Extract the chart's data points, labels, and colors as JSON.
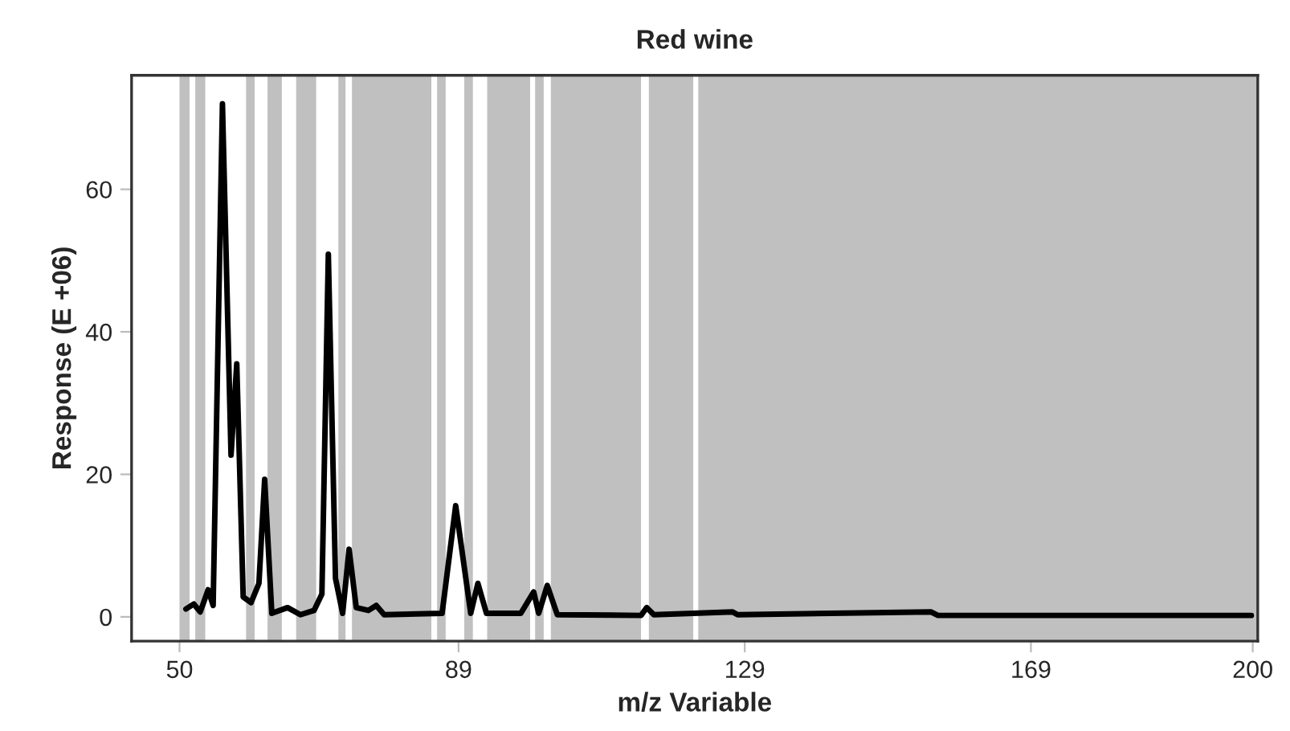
{
  "chart_data": {
    "type": "line",
    "title": "Red wine",
    "xlabel": "m/z Variable",
    "ylabel": "Response (E +06)",
    "x": [
      50.9,
      52.0,
      52.9,
      54.0,
      54.7,
      56.0,
      57.2,
      58.0,
      58.9,
      60.0,
      61.1,
      61.9,
      62.9,
      65.1,
      66.9,
      68.8,
      69.9,
      70.8,
      71.8,
      72.8,
      73.7,
      74.7,
      76.4,
      77.5,
      78.6,
      86.7,
      88.6,
      90.7,
      91.7,
      92.9,
      97.7,
      99.5,
      100.2,
      101.4,
      102.8,
      114.5,
      115.3,
      116.3,
      127.3,
      128.0,
      155.0,
      156.0,
      199.8
    ],
    "series": [
      {
        "color": "#000000",
        "values": [
          1.1,
          1.8,
          0.7,
          3.8,
          1.6,
          72,
          22.7,
          35.5,
          2.8,
          2.0,
          4.7,
          19.3,
          0.5,
          1.3,
          0.3,
          0.9,
          3.2,
          50.9,
          5.4,
          0.5,
          9.5,
          1.3,
          0.9,
          1.6,
          0.3,
          0.5,
          15.6,
          0.5,
          4.7,
          0.5,
          0.5,
          3.5,
          0.5,
          4.4,
          0.3,
          0.2,
          1.3,
          0.3,
          0.7,
          0.3,
          0.7,
          0.2,
          0.2
        ]
      }
    ],
    "xlim": [
      43.3,
      200.7
    ],
    "xticks": [
      50,
      89,
      129,
      169,
      200
    ],
    "ylim": [
      -3.4,
      76
    ],
    "yticks": [
      0,
      20,
      40,
      60
    ],
    "grid": false,
    "line_style": "solid",
    "marker": "none",
    "bands": [
      {
        "axis": "x",
        "from": 50.0,
        "to": 51.4,
        "color": "#c0c0c0"
      },
      {
        "axis": "x",
        "from": 52.2,
        "to": 53.6,
        "color": "#c0c0c0"
      },
      {
        "axis": "x",
        "from": 59.3,
        "to": 60.5,
        "color": "#c0c0c0"
      },
      {
        "axis": "x",
        "from": 62.3,
        "to": 64.3,
        "color": "#c0c0c0"
      },
      {
        "axis": "x",
        "from": 66.3,
        "to": 69.1,
        "color": "#c0c0c0"
      },
      {
        "axis": "x",
        "from": 72.2,
        "to": 73.2,
        "color": "#c0c0c0"
      },
      {
        "axis": "x",
        "from": 74.1,
        "to": 85.2,
        "color": "#c0c0c0"
      },
      {
        "axis": "x",
        "from": 86.0,
        "to": 87.2,
        "color": "#c0c0c0"
      },
      {
        "axis": "x",
        "from": 89.8,
        "to": 91.0,
        "color": "#c0c0c0"
      },
      {
        "axis": "x",
        "from": 93.0,
        "to": 99.0,
        "color": "#c0c0c0"
      },
      {
        "axis": "x",
        "from": 99.7,
        "to": 100.9,
        "color": "#c0c0c0"
      },
      {
        "axis": "x",
        "from": 101.9,
        "to": 114.5,
        "color": "#c0c0c0"
      },
      {
        "axis": "x",
        "from": 115.6,
        "to": 121.8,
        "color": "#c0c0c0"
      },
      {
        "axis": "x",
        "from": 122.5,
        "to": 200.7,
        "color": "#c0c0c0"
      }
    ]
  }
}
